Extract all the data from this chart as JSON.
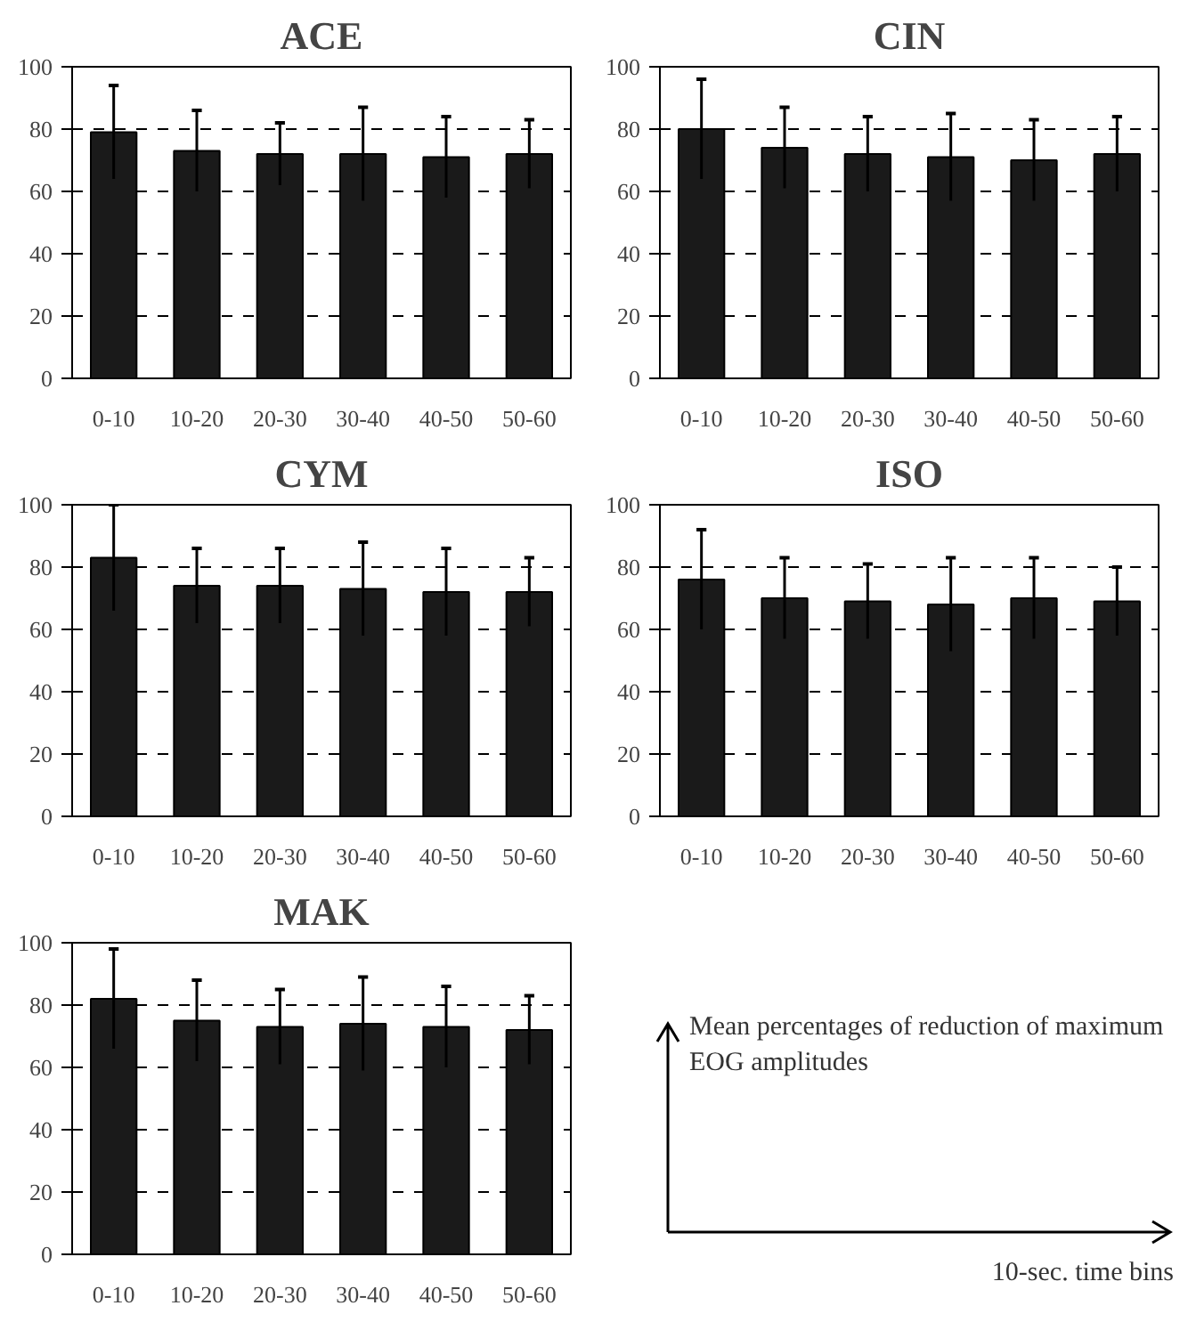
{
  "chart_data": [
    {
      "type": "bar",
      "title": "ACE",
      "categories": [
        "0-10",
        "10-20",
        "20-30",
        "30-40",
        "40-50",
        "50-60"
      ],
      "values": [
        79,
        73,
        72,
        72,
        71,
        72
      ],
      "errors": [
        15,
        13,
        10,
        15,
        13,
        11
      ],
      "color": "#1a1a1a",
      "ylim": [
        0,
        100
      ],
      "yticks": [
        0,
        20,
        40,
        60,
        80,
        100
      ],
      "grid": "y"
    },
    {
      "type": "bar",
      "title": "CIN",
      "categories": [
        "0-10",
        "10-20",
        "20-30",
        "30-40",
        "40-50",
        "50-60"
      ],
      "values": [
        80,
        74,
        72,
        71,
        70,
        72
      ],
      "errors": [
        16,
        13,
        12,
        14,
        13,
        12
      ],
      "color": "#1a1a1a",
      "ylim": [
        0,
        100
      ],
      "yticks": [
        0,
        20,
        40,
        60,
        80,
        100
      ],
      "grid": "y"
    },
    {
      "type": "bar",
      "title": "CYM",
      "categories": [
        "0-10",
        "10-20",
        "20-30",
        "30-40",
        "40-50",
        "50-60"
      ],
      "values": [
        83,
        74,
        74,
        73,
        72,
        72
      ],
      "errors": [
        17,
        12,
        12,
        15,
        14,
        11
      ],
      "color": "#1a1a1a",
      "ylim": [
        0,
        100
      ],
      "yticks": [
        0,
        20,
        40,
        60,
        80,
        100
      ],
      "grid": "y"
    },
    {
      "type": "bar",
      "title": "ISO",
      "categories": [
        "0-10",
        "10-20",
        "20-30",
        "30-40",
        "40-50",
        "50-60"
      ],
      "values": [
        76,
        70,
        69,
        68,
        70,
        69
      ],
      "errors": [
        16,
        13,
        12,
        15,
        13,
        11
      ],
      "color": "#1a1a1a",
      "ylim": [
        0,
        100
      ],
      "yticks": [
        0,
        20,
        40,
        60,
        80,
        100
      ],
      "grid": "y"
    },
    {
      "type": "bar",
      "title": "MAK",
      "categories": [
        "0-10",
        "10-20",
        "20-30",
        "30-40",
        "40-50",
        "50-60"
      ],
      "values": [
        82,
        75,
        73,
        74,
        73,
        72
      ],
      "errors": [
        16,
        13,
        12,
        15,
        13,
        11
      ],
      "color": "#1a1a1a",
      "ylim": [
        0,
        100
      ],
      "yticks": [
        0,
        20,
        40,
        60,
        80,
        100
      ],
      "grid": "y"
    },
    {
      "type": "other",
      "ylabel": "Mean percentages of reduction of maximum EOG amplitudes",
      "xlabel": "10-sec. time bins"
    }
  ]
}
